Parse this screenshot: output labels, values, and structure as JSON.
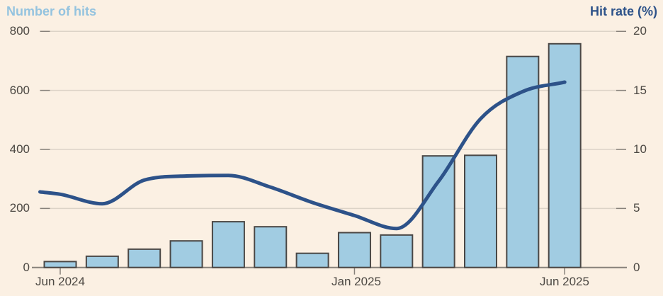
{
  "chart": {
    "left_axis_title": "Number of hits",
    "right_axis_title": "Hit rate (%)"
  },
  "chart_data": {
    "type": "bar",
    "subtype": "bar-and-line-dual-axis",
    "categories": [
      "Jun 2024",
      "Jul 2024",
      "Aug 2024",
      "Sep 2024",
      "Oct 2024",
      "Nov 2024",
      "Dec 2024",
      "Jan 2025",
      "Feb 2025",
      "Mar 2025",
      "Apr 2025",
      "May 2025",
      "Jun 2025"
    ],
    "series": [
      {
        "name": "Number of hits",
        "type": "bar",
        "axis": "left",
        "values": [
          20,
          38,
          62,
          90,
          155,
          138,
          48,
          118,
          110,
          378,
          380,
          715,
          758
        ]
      },
      {
        "name": "Hit rate (%)",
        "type": "line",
        "axis": "right",
        "values": [
          6.2,
          5.4,
          7.4,
          7.75,
          7.8,
          6.8,
          5.5,
          4.4,
          3.3,
          7.3,
          12.6,
          14.9,
          15.7
        ],
        "edge_start_value": 6.4
      }
    ],
    "left_axis": {
      "title": "Number of hits",
      "min": 0,
      "max": 800,
      "ticks": [
        800,
        600,
        400,
        200,
        0
      ]
    },
    "right_axis": {
      "title": "Hit rate (%)",
      "min": 0,
      "max": 20,
      "ticks": [
        20,
        15,
        10,
        5,
        0
      ]
    },
    "x_axis": {
      "tick_labels": [
        "Jun 2024",
        "Jan 2025",
        "Jun 2025"
      ],
      "tick_indices": [
        0,
        7,
        12
      ]
    },
    "grid": "horizontal",
    "legend": "none",
    "colors": {
      "background": "#FBF0E3",
      "bar_fill": "#A1CCE2",
      "bar_stroke": "#4A4745",
      "line": "#2D5289",
      "gridline": "#DCD3C7",
      "axis": "#87817A",
      "tick_text": "#4C4843",
      "left_title": "#94C3DF",
      "right_title": "#2D5289"
    }
  }
}
